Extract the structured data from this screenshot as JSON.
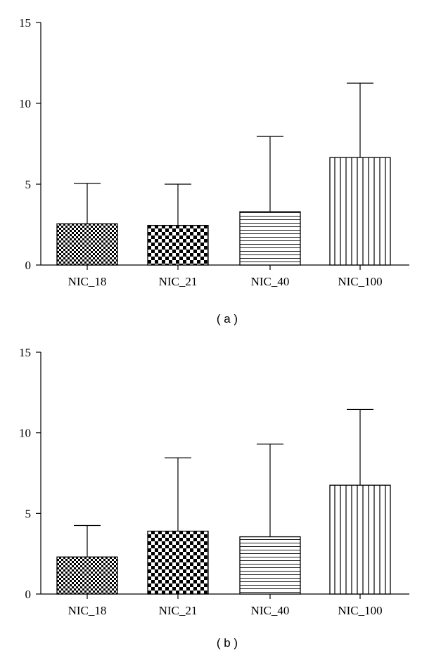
{
  "chart_data": [
    {
      "type": "bar",
      "panel_label": "( a )",
      "categories": [
        "NIC_18",
        "NIC_21",
        "NIC_40",
        "NIC_100"
      ],
      "values": [
        2.55,
        2.45,
        3.3,
        6.65
      ],
      "error_upper": [
        5.05,
        5.0,
        7.95,
        11.25
      ],
      "patterns": [
        "fine-checker",
        "checker",
        "horizontal-lines",
        "vertical-lines"
      ],
      "ylim": [
        0,
        15
      ],
      "yticks": [
        "0",
        "5",
        "10",
        "15"
      ],
      "title": "",
      "xlabel": "",
      "ylabel": ""
    },
    {
      "type": "bar",
      "panel_label": "( b )",
      "categories": [
        "NIC_18",
        "NIC_21",
        "NIC_40",
        "NIC_100"
      ],
      "values": [
        2.3,
        3.9,
        3.55,
        6.75
      ],
      "error_upper": [
        4.25,
        8.45,
        9.3,
        11.45
      ],
      "patterns": [
        "fine-checker",
        "checker",
        "horizontal-lines",
        "vertical-lines"
      ],
      "ylim": [
        0,
        15
      ],
      "yticks": [
        "0",
        "5",
        "10",
        "15"
      ],
      "title": "",
      "xlabel": "",
      "ylabel": ""
    }
  ]
}
